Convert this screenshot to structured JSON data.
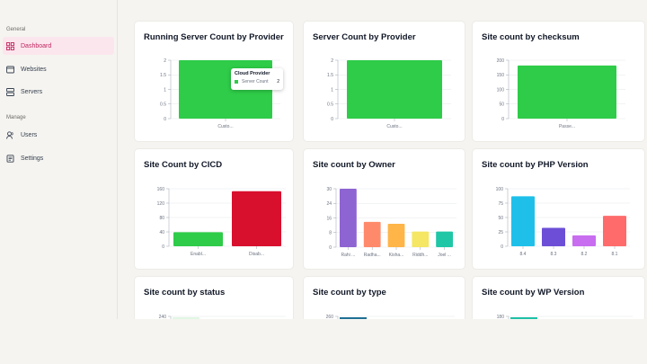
{
  "sidebar": {
    "sections": [
      "General",
      "Manage"
    ],
    "items": [
      {
        "label": "Dashboard",
        "icon": "dashboard-icon",
        "active": true
      },
      {
        "label": "Websites",
        "icon": "websites-icon",
        "active": false
      },
      {
        "label": "Servers",
        "icon": "servers-icon",
        "active": false
      },
      {
        "label": "Users",
        "icon": "users-icon",
        "active": false
      },
      {
        "label": "Settings",
        "icon": "settings-icon",
        "active": false
      }
    ]
  },
  "colors": {
    "accent": "#c0245c",
    "green": "#2ecc48",
    "red": "#d90f2e"
  },
  "tooltip": {
    "title": "Cloud Provider",
    "series": "Server Count",
    "value": "2"
  },
  "cards": [
    {
      "title": "Running Server Count by Provider"
    },
    {
      "title": "Server Count by Provider"
    },
    {
      "title": "Site count by checksum"
    },
    {
      "title": "Site Count by CICD"
    },
    {
      "title": "Site count by Owner"
    },
    {
      "title": "Site count by PHP Version"
    },
    {
      "title": "Site count by status"
    },
    {
      "title": "Site count by type"
    },
    {
      "title": "Site count by WP Version"
    }
  ],
  "chart_data": [
    {
      "type": "bar",
      "title": "Running Server Count by Provider",
      "categories": [
        "Custo..."
      ],
      "values": [
        2
      ],
      "ylim": [
        0,
        2
      ],
      "yticks": [
        "0",
        "0.5",
        "1",
        "1.5",
        "2"
      ],
      "colors": [
        "#2ecc48"
      ]
    },
    {
      "type": "bar",
      "title": "Server Count by Provider",
      "categories": [
        "Custo..."
      ],
      "values": [
        2
      ],
      "ylim": [
        0,
        2
      ],
      "yticks": [
        "0",
        "0.5",
        "1",
        "1.5",
        "2"
      ],
      "colors": [
        "#2ecc48"
      ]
    },
    {
      "type": "bar",
      "title": "Site count by checksum",
      "categories": [
        "Passe..."
      ],
      "values": [
        182
      ],
      "ylim": [
        0,
        200
      ],
      "yticks": [
        "0",
        "50",
        "100",
        "150",
        "200"
      ],
      "colors": [
        "#2ecc48"
      ]
    },
    {
      "type": "bar",
      "title": "Site Count by CICD",
      "categories": [
        "Enabl...",
        "Disab..."
      ],
      "values": [
        39,
        153
      ],
      "ylim": [
        0,
        160
      ],
      "yticks": [
        "0",
        "40",
        "80",
        "120",
        "160"
      ],
      "colors": [
        "#2ecc48",
        "#d90f2e"
      ]
    },
    {
      "type": "bar",
      "title": "Site count by Owner",
      "categories": [
        "Rahi ...",
        "Radha...",
        "Kisha...",
        "Riddh...",
        "Joel ..."
      ],
      "values": [
        30,
        13,
        12,
        8,
        8
      ],
      "ylim": [
        0,
        30
      ],
      "yticks": [
        "0",
        "8",
        "16",
        "24",
        "30"
      ],
      "colors": [
        "#8e63d2",
        "#ff8a6b",
        "#ffb547",
        "#f5e663",
        "#1fc7a6"
      ]
    },
    {
      "type": "bar",
      "title": "Site count by PHP Version",
      "categories": [
        "8.4",
        "8.3",
        "8.2",
        "8.1"
      ],
      "values": [
        87,
        32,
        19,
        53
      ],
      "ylim": [
        0,
        100
      ],
      "yticks": [
        "0",
        "25",
        "50",
        "75",
        "100"
      ],
      "colors": [
        "#1ec0ea",
        "#6c4fd6",
        "#c86df0",
        "#ff6b6b"
      ]
    },
    {
      "type": "bar",
      "title": "Site count by status",
      "categories": [],
      "values": [],
      "ylim": [
        0,
        240
      ],
      "yticks": [
        "240"
      ],
      "colors": [
        "#2ecc48"
      ]
    },
    {
      "type": "bar",
      "title": "Site count by type",
      "categories": [],
      "values": [],
      "ylim": [
        0,
        260
      ],
      "yticks": [
        "260"
      ],
      "colors": [
        "#1f6f94"
      ]
    },
    {
      "type": "bar",
      "title": "Site count by WP Version",
      "categories": [],
      "values": [],
      "ylim": [
        0,
        180
      ],
      "yticks": [
        "180"
      ],
      "colors": [
        "#1ec0a6"
      ]
    }
  ]
}
